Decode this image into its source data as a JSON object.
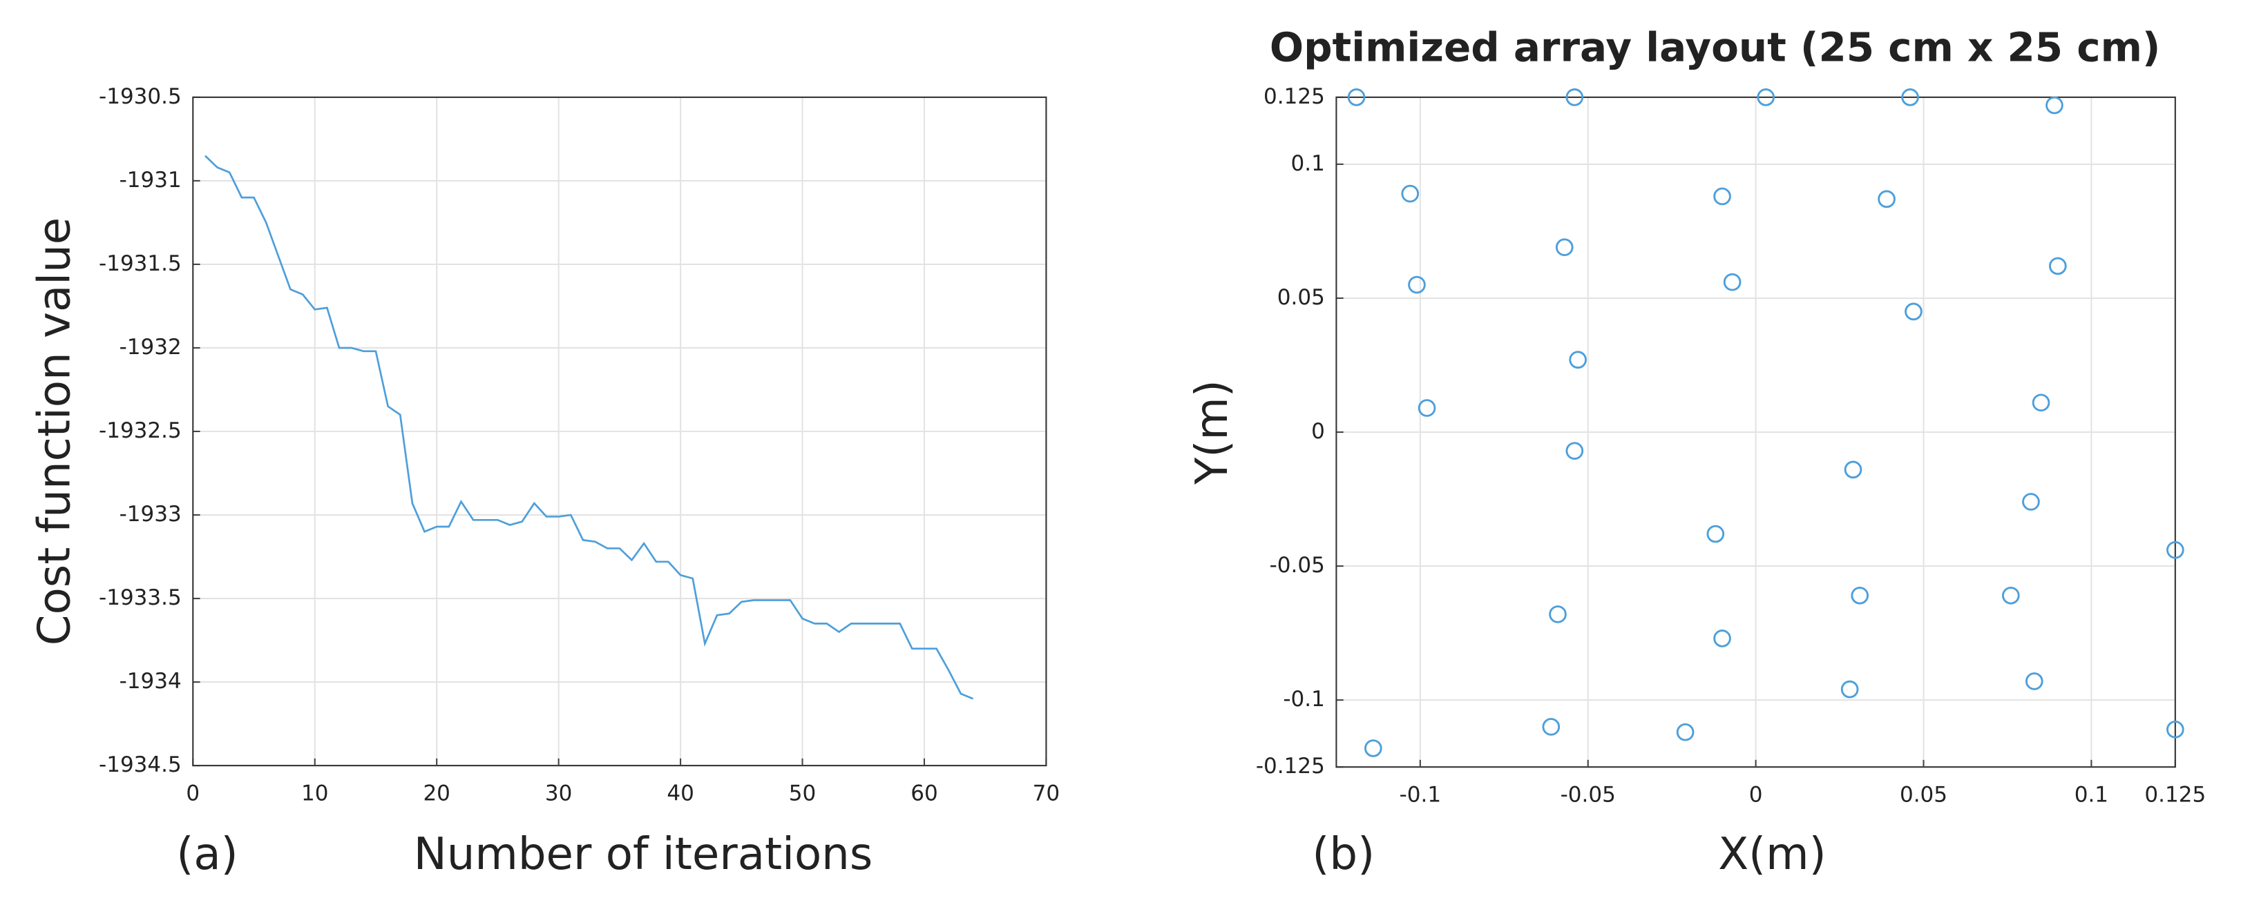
{
  "chart_data": [
    {
      "type": "line",
      "panel_label": "(a)",
      "xlabel": "Number of iterations",
      "ylabel": "Cost function value",
      "color": "#4d9fdb",
      "grid": true,
      "xlim": [
        0,
        70
      ],
      "xticks": [
        0,
        10,
        20,
        30,
        40,
        50,
        60,
        70
      ],
      "ylim": [
        -1934.5,
        -1930.5
      ],
      "yticks": [
        -1934.5,
        -1934,
        -1933.5,
        -1933,
        -1932.5,
        -1932,
        -1931.5,
        -1931,
        -1930.5
      ],
      "x": [
        1,
        2,
        3,
        4,
        5,
        6,
        7,
        8,
        9,
        10,
        11,
        12,
        13,
        14,
        15,
        16,
        17,
        18,
        19,
        20,
        21,
        22,
        23,
        24,
        25,
        26,
        27,
        28,
        29,
        30,
        31,
        32,
        33,
        34,
        35,
        36,
        37,
        38,
        39,
        40,
        41,
        42,
        43,
        44,
        45,
        46,
        47,
        48,
        49,
        50,
        51,
        52,
        53,
        54,
        55,
        56,
        57,
        58,
        59,
        60,
        61,
        62,
        63,
        64
      ],
      "values": [
        -1930.85,
        -1930.92,
        -1930.95,
        -1931.1,
        -1931.1,
        -1931.25,
        -1931.45,
        -1931.65,
        -1931.68,
        -1931.77,
        -1931.76,
        -1932.0,
        -1932.0,
        -1932.02,
        -1932.02,
        -1932.35,
        -1932.4,
        -1932.93,
        -1933.1,
        -1933.07,
        -1933.07,
        -1932.92,
        -1933.03,
        -1933.03,
        -1933.03,
        -1933.06,
        -1933.04,
        -1932.93,
        -1933.01,
        -1933.01,
        -1933.0,
        -1933.15,
        -1933.16,
        -1933.2,
        -1933.2,
        -1933.27,
        -1933.17,
        -1933.28,
        -1933.28,
        -1933.36,
        -1933.38,
        -1933.77,
        -1933.6,
        -1933.59,
        -1933.52,
        -1933.51,
        -1933.51,
        -1933.51,
        -1933.51,
        -1933.62,
        -1933.65,
        -1933.65,
        -1933.7,
        -1933.65,
        -1933.65,
        -1933.65,
        -1933.65,
        -1933.65,
        -1933.8,
        -1933.8,
        -1933.8,
        -1933.93,
        -1934.07,
        -1934.1
      ]
    },
    {
      "type": "scatter",
      "title": "Optimized array layout (25 cm x 25 cm)",
      "panel_label": "(b)",
      "xlabel": "X(m)",
      "ylabel": "Y(m)",
      "color": "#4d9fdb",
      "grid": true,
      "xlim": [
        -0.125,
        0.125
      ],
      "xticks": [
        -0.1,
        -0.05,
        0,
        0.05,
        0.1,
        0.125
      ],
      "ylim": [
        -0.125,
        0.125
      ],
      "yticks": [
        -0.125,
        -0.1,
        -0.05,
        0,
        0.05,
        0.1,
        0.125
      ],
      "x": [
        -0.119,
        -0.054,
        0.003,
        0.046,
        0.089,
        -0.103,
        -0.01,
        0.039,
        -0.057,
        0.09,
        -0.101,
        -0.007,
        0.047,
        -0.053,
        0.085,
        -0.098,
        -0.054,
        0.029,
        0.082,
        0.125,
        -0.012,
        0.031,
        0.076,
        -0.059,
        -0.01,
        0.028,
        0.083,
        -0.061,
        -0.021,
        0.125,
        -0.114
      ],
      "values": [
        0.125,
        0.125,
        0.125,
        0.125,
        0.122,
        0.089,
        0.088,
        0.087,
        0.069,
        0.062,
        0.055,
        0.056,
        0.045,
        0.027,
        0.011,
        0.009,
        -0.007,
        -0.014,
        -0.026,
        -0.044,
        -0.038,
        -0.061,
        -0.061,
        -0.068,
        -0.077,
        -0.096,
        -0.093,
        -0.11,
        -0.112,
        -0.111,
        -0.118
      ]
    }
  ]
}
